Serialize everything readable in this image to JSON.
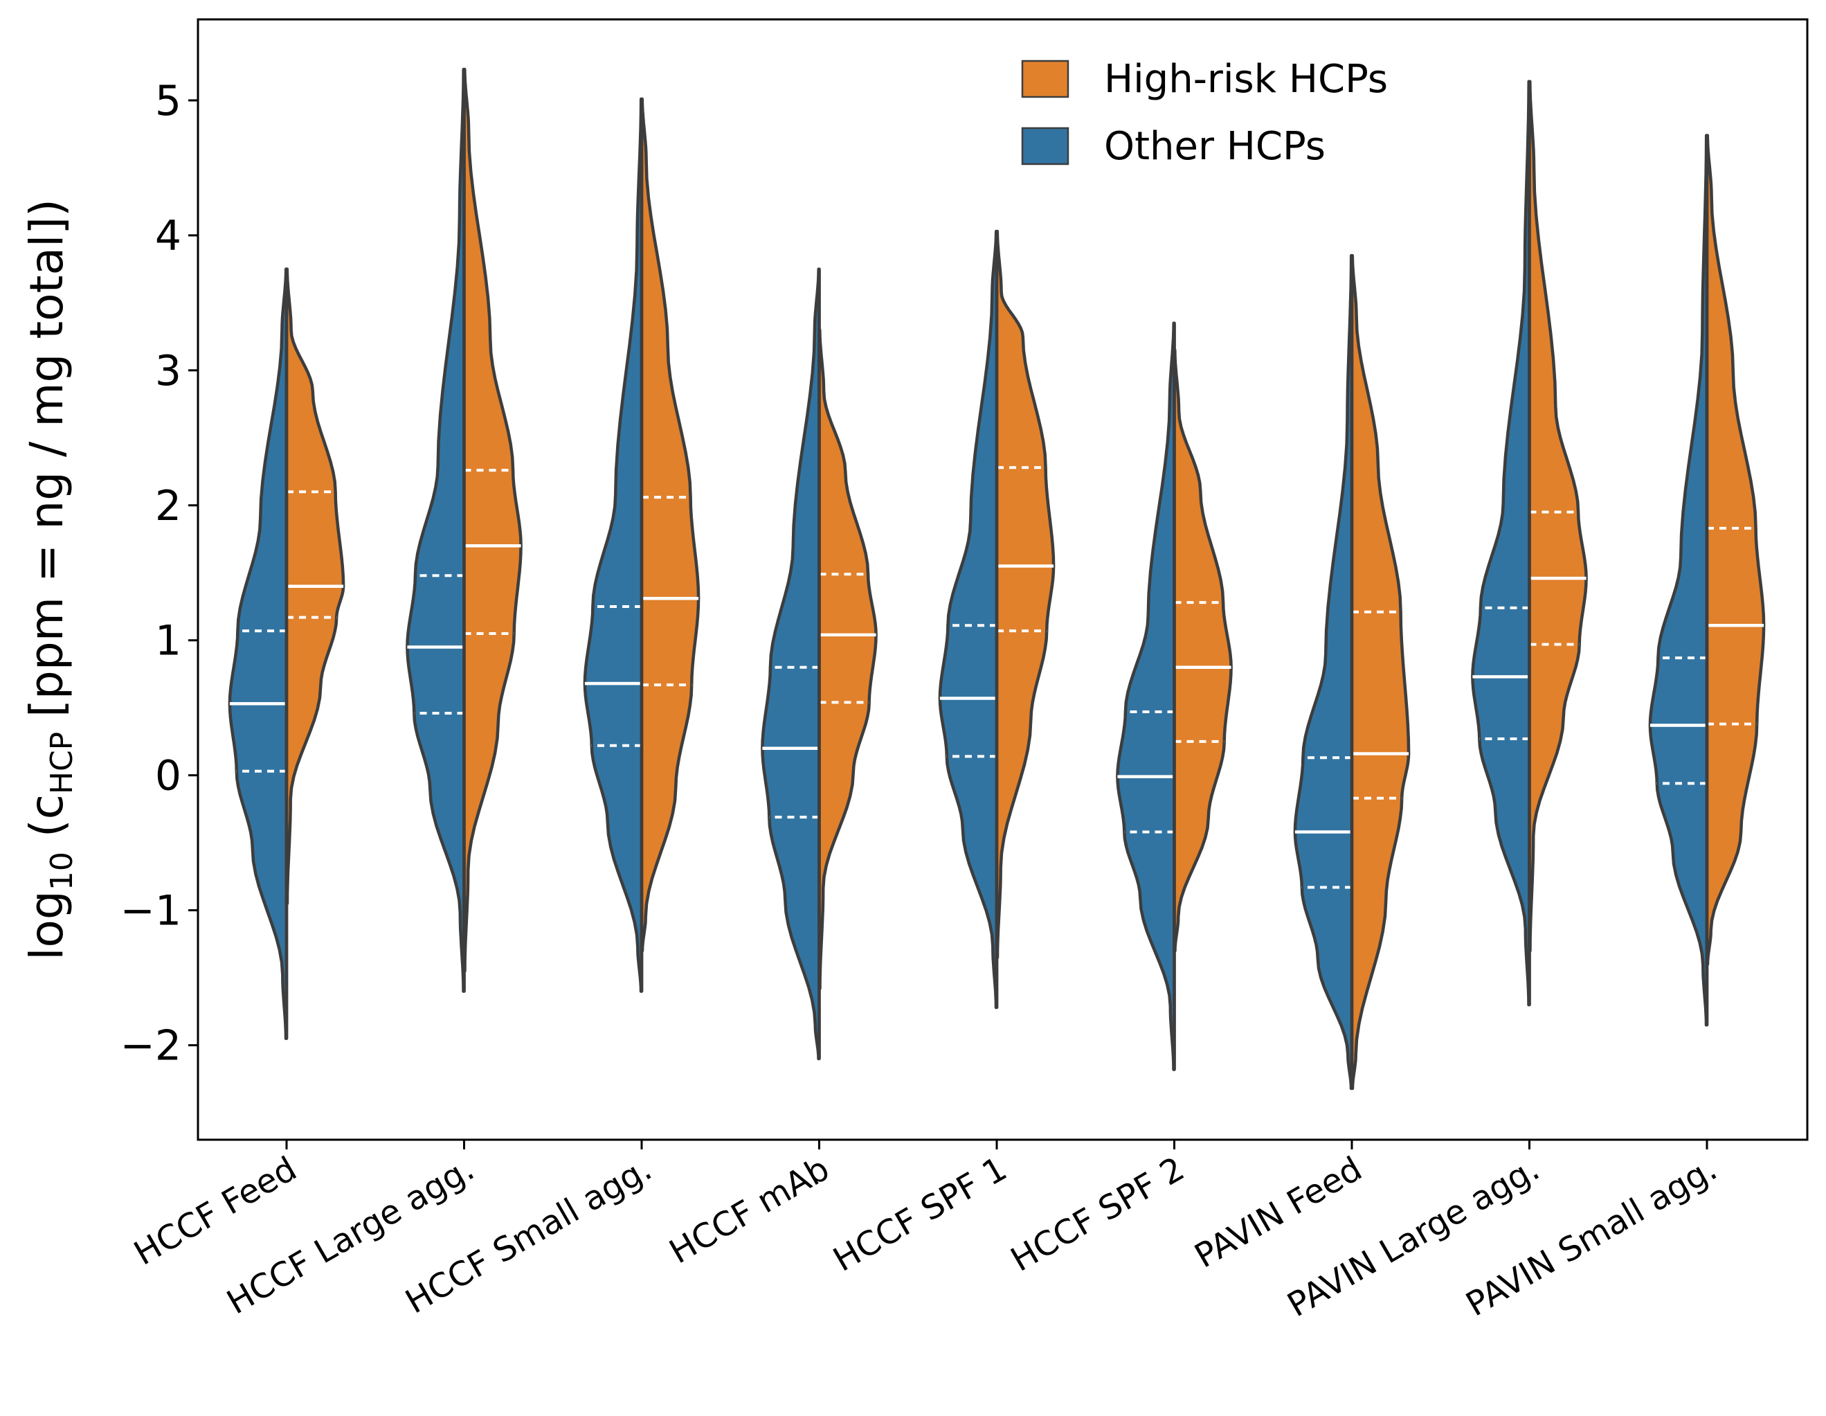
{
  "chart_data": {
    "type": "violin",
    "split": true,
    "title": "",
    "xlabel": "",
    "ylabel": {
      "prefix": "log",
      "prefix_sub": "10",
      "open": " (c",
      "sub": "HCP",
      "rest": " [ppm = ng / mg total])"
    },
    "ylim": [
      -2.7,
      5.6
    ],
    "yticks": [
      -2,
      -1,
      0,
      1,
      2,
      3,
      4,
      5
    ],
    "ytick_labels": [
      "−2",
      "−1",
      "0",
      "1",
      "2",
      "3",
      "4",
      "5"
    ],
    "legend": {
      "position": "top-center",
      "entries": [
        "High-risk HCPs",
        "Other HCPs"
      ]
    },
    "categories": [
      "HCCF Feed",
      "HCCF Large agg.",
      "HCCF Small agg.",
      "HCCF mAb",
      "HCCF SPF 1",
      "HCCF SPF 2",
      "PAVIN Feed",
      "PAVIN Large agg.",
      "PAVIN Small agg."
    ],
    "series": [
      {
        "name": "Other HCPs",
        "color": "#3274a1",
        "side": "left",
        "min": [
          -1.95,
          -1.6,
          -1.6,
          -2.1,
          -1.72,
          -2.18,
          -2.32,
          -1.7,
          -1.85
        ],
        "max": [
          3.75,
          5.23,
          5.01,
          3.75,
          4.03,
          3.35,
          3.85,
          5.14,
          4.74
        ],
        "q1": [
          0.03,
          0.46,
          0.22,
          -0.31,
          0.14,
          -0.42,
          -0.83,
          0.27,
          -0.06
        ],
        "median": [
          0.53,
          0.95,
          0.68,
          0.2,
          0.57,
          -0.01,
          -0.42,
          0.73,
          0.37
        ],
        "q3": [
          1.07,
          1.48,
          1.25,
          0.8,
          1.11,
          0.47,
          0.13,
          1.24,
          0.87
        ]
      },
      {
        "name": "High-risk HCPs",
        "color": "#e1812c",
        "side": "right",
        "min": [
          -0.95,
          -1.45,
          -1.3,
          -1.58,
          -1.35,
          -1.3,
          -2.32,
          -1.3,
          -1.4
        ],
        "max": [
          3.75,
          5.23,
          5.01,
          3.3,
          4.03,
          3.15,
          3.85,
          5.14,
          4.74
        ],
        "q1": [
          1.17,
          1.05,
          0.67,
          0.54,
          1.07,
          0.25,
          -0.17,
          0.97,
          0.38
        ],
        "median": [
          1.4,
          1.7,
          1.31,
          1.04,
          1.55,
          0.8,
          0.16,
          1.46,
          1.11
        ],
        "q3": [
          2.1,
          2.26,
          2.06,
          1.49,
          2.28,
          1.28,
          1.21,
          1.95,
          1.83
        ]
      }
    ]
  }
}
